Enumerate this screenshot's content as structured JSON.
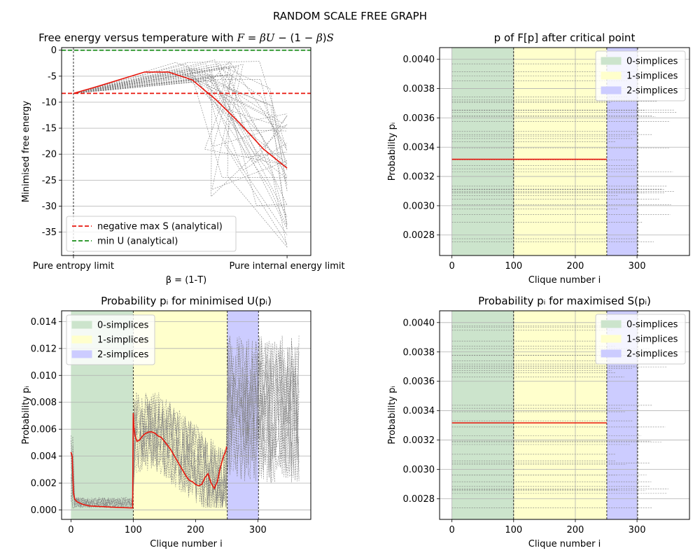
{
  "figure": {
    "suptitle": "RANDOM SCALE FREE GRAPH"
  },
  "colors": {
    "zero_simplices": "#cce4cc",
    "one_simplices": "#ffffcc",
    "two_simplices": "#ccccff",
    "mean_line": "#e8160c",
    "samples": "#808080",
    "max_s": "#e8160c",
    "min_u": "#1a8f1a"
  },
  "chart_data": [
    {
      "id": "free-energy",
      "type": "line",
      "title": "Free energy versus temperature with F = βU − (1 − β)S",
      "title_parts": [
        "Free energy versus temperature with ",
        "F",
        " = ",
        "β",
        "U",
        " − (1 − ",
        "β",
        ")",
        "S"
      ],
      "xlabel": "β = (1-T)",
      "ylabel": "Minimised free energy",
      "xlim": [
        -0.05,
        1.0
      ],
      "ylim": [
        -39.5,
        0.5
      ],
      "xticks": [
        {
          "v": 0,
          "label": "Pure entropy limit"
        },
        {
          "v": 0.9,
          "label": "Pure internal energy limit"
        }
      ],
      "yticks": [
        0,
        -5,
        -10,
        -15,
        -20,
        -25,
        -30,
        -35
      ],
      "grid": "y",
      "legend": {
        "position": "lower-left",
        "entries": [
          "negative max S (analytical)",
          "min U (analytical)"
        ]
      },
      "hlines": [
        {
          "name": "negative max S (analytical)",
          "y": -8.3,
          "color": "#e8160c"
        },
        {
          "name": "min U (analytical)",
          "y": 0,
          "color": "#1a8f1a"
        }
      ],
      "vlines": [
        0
      ],
      "mean_series": {
        "x": [
          0,
          0.1,
          0.2,
          0.3,
          0.4,
          0.5,
          0.6,
          0.7,
          0.8,
          0.9
        ],
        "y": [
          -8.3,
          -7.0,
          -5.6,
          -4.2,
          -4.2,
          -5.7,
          -9.5,
          -14.0,
          -19.0,
          -22.7
        ]
      }
    },
    {
      "id": "p-after-critical",
      "type": "line",
      "title": "p of F[p] after critical point",
      "xlabel": "Clique number i",
      "ylabel": "Probability pᵢ",
      "xlim": [
        -20,
        385
      ],
      "ylim": [
        0.00266,
        0.00408
      ],
      "xticks": [
        0,
        100,
        200,
        300
      ],
      "yticks": [
        0.0028,
        0.003,
        0.0032,
        0.0034,
        0.0036,
        0.0038,
        0.004
      ],
      "ytick_labels": [
        "0.0028",
        "0.0030",
        "0.0032",
        "0.0034",
        "0.0036",
        "0.0038",
        "0.0040"
      ],
      "grid": "both",
      "regions": [
        {
          "name": "0-simplices",
          "x0": 0,
          "x1": 100
        },
        {
          "name": "1-simplices",
          "x0": 100,
          "x1": 251
        },
        {
          "name": "2-simplices",
          "x0": 251,
          "x1": 301
        }
      ],
      "legend": {
        "position": "top-right",
        "entries": [
          "0-simplices",
          "1-simplices",
          "2-simplices"
        ]
      },
      "mean_series": {
        "x": [
          0,
          251
        ],
        "y": [
          0.003317,
          0.003317
        ]
      }
    },
    {
      "id": "p-min-u",
      "type": "line",
      "title": "Probability pᵢ for minimised U(pᵢ)",
      "xlabel": "Clique number i",
      "ylabel": "Probability pᵢ",
      "xlim": [
        -15,
        385
      ],
      "ylim": [
        -0.0007,
        0.0148
      ],
      "xticks": [
        0,
        100,
        200,
        300
      ],
      "yticks": [
        0,
        0.002,
        0.004,
        0.006,
        0.008,
        0.01,
        0.012,
        0.014
      ],
      "ytick_labels": [
        "0.000",
        "0.002",
        "0.004",
        "0.006",
        "0.008",
        "0.010",
        "0.012",
        "0.014"
      ],
      "grid": "y",
      "regions": [
        {
          "name": "0-simplices",
          "x0": 0,
          "x1": 100
        },
        {
          "name": "1-simplices",
          "x0": 100,
          "x1": 251
        },
        {
          "name": "2-simplices",
          "x0": 251,
          "x1": 301
        }
      ],
      "legend": {
        "position": "top-left",
        "entries": [
          "0-simplices",
          "1-simplices",
          "2-simplices"
        ]
      },
      "mean_series": {
        "x": [
          0,
          2,
          4,
          6,
          10,
          15,
          20,
          30,
          50,
          70,
          99,
          100,
          101,
          103,
          106,
          110,
          115,
          120,
          125,
          130,
          135,
          140,
          145,
          150,
          155,
          160,
          165,
          170,
          175,
          180,
          185,
          190,
          195,
          200,
          205,
          210,
          215,
          220,
          225,
          230,
          235,
          240,
          245,
          248,
          250
        ],
        "y": [
          0.0043,
          0.004,
          0.0013,
          0.0008,
          0.0006,
          0.0005,
          0.0004,
          0.0003,
          0.00025,
          0.0002,
          0.00015,
          0.0072,
          0.0062,
          0.0055,
          0.0051,
          0.0052,
          0.0055,
          0.0057,
          0.0058,
          0.0058,
          0.0057,
          0.0055,
          0.0054,
          0.0051,
          0.0048,
          0.0045,
          0.0041,
          0.0037,
          0.0033,
          0.0029,
          0.0025,
          0.0022,
          0.0021,
          0.0019,
          0.0018,
          0.0019,
          0.0024,
          0.0027,
          0.002,
          0.0016,
          0.0021,
          0.0032,
          0.004,
          0.0043,
          0.0047
        ]
      }
    },
    {
      "id": "p-max-s",
      "type": "line",
      "title": "Probability pᵢ for maximised S(pᵢ)",
      "xlabel": "Clique number i",
      "ylabel": "Probability pᵢ",
      "xlim": [
        -20,
        385
      ],
      "ylim": [
        0.00266,
        0.00408
      ],
      "xticks": [
        0,
        100,
        200,
        300
      ],
      "yticks": [
        0.0028,
        0.003,
        0.0032,
        0.0034,
        0.0036,
        0.0038,
        0.004
      ],
      "ytick_labels": [
        "0.0028",
        "0.0030",
        "0.0032",
        "0.0034",
        "0.0036",
        "0.0038",
        "0.0040"
      ],
      "grid": "both",
      "regions": [
        {
          "name": "0-simplices",
          "x0": 0,
          "x1": 100
        },
        {
          "name": "1-simplices",
          "x0": 100,
          "x1": 251
        },
        {
          "name": "2-simplices",
          "x0": 251,
          "x1": 301
        }
      ],
      "legend": {
        "position": "top-right",
        "entries": [
          "0-simplices",
          "1-simplices",
          "2-simplices"
        ]
      },
      "mean_series": {
        "x": [
          0,
          251
        ],
        "y": [
          0.003317,
          0.003317
        ]
      }
    }
  ]
}
